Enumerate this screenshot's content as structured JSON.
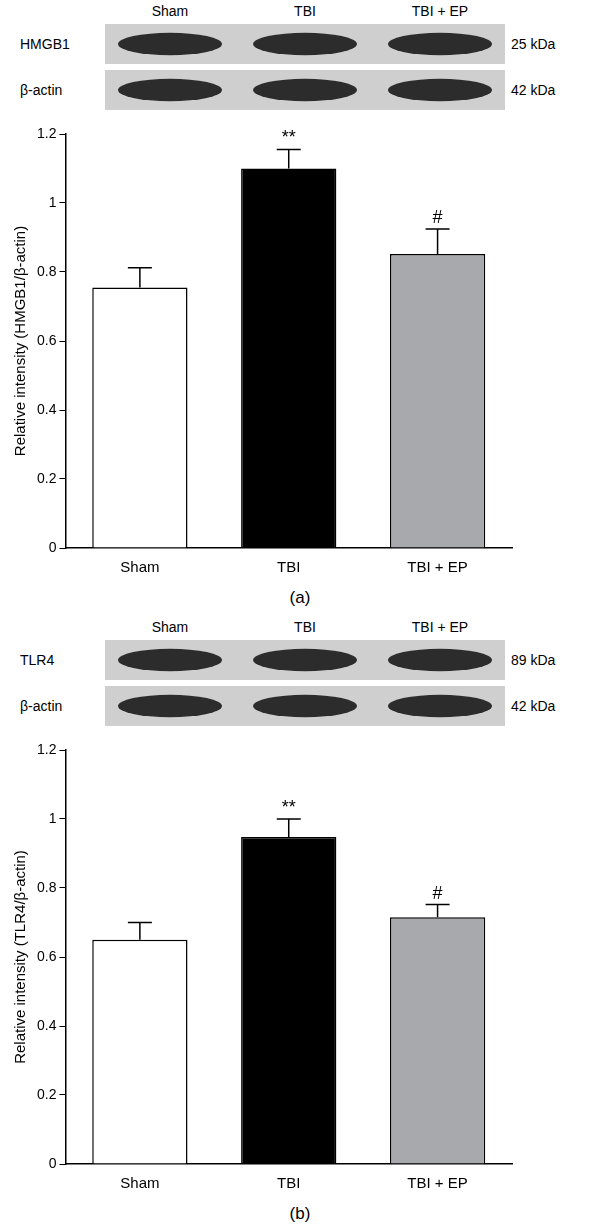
{
  "chart_data": [
    {
      "type": "bar",
      "panel": "(a)",
      "blot": {
        "lanes": [
          "Sham",
          "TBI",
          "TBI + EP"
        ],
        "rows": [
          {
            "label": "HMGB1",
            "size": "25 kDa"
          },
          {
            "label": "β-actin",
            "size": "42 kDa"
          }
        ]
      },
      "categories": [
        "Sham",
        "TBI",
        "TBI + EP"
      ],
      "values": [
        0.755,
        1.1,
        0.852
      ],
      "errors": [
        0.057,
        0.055,
        0.073
      ],
      "annotations": [
        null,
        "**",
        "#"
      ],
      "colors": [
        "#ffffff",
        "#000000",
        "#a7a9ac"
      ],
      "y_label": "Relative intensity (HMGB1/β-actin)",
      "ylim": [
        0,
        1.2
      ],
      "yticks": [
        0,
        0.2,
        0.4,
        0.6,
        0.8,
        1,
        1.2
      ],
      "grid": false
    },
    {
      "type": "bar",
      "panel": "(b)",
      "blot": {
        "lanes": [
          "Sham",
          "TBI",
          "TBI + EP"
        ],
        "rows": [
          {
            "label": "TLR4",
            "size": "89 kDa"
          },
          {
            "label": "β-actin",
            "size": "42 kDa"
          }
        ]
      },
      "categories": [
        "Sham",
        "TBI",
        "TBI + EP"
      ],
      "values": [
        0.65,
        0.948,
        0.715
      ],
      "errors": [
        0.05,
        0.052,
        0.037
      ],
      "annotations": [
        null,
        "**",
        "#"
      ],
      "colors": [
        "#ffffff",
        "#000000",
        "#a7a9ac"
      ],
      "y_label": "Relative intensity (TLR4/β-actin)",
      "ylim": [
        0,
        1.2
      ],
      "yticks": [
        0,
        0.2,
        0.4,
        0.6,
        0.8,
        1,
        1.2
      ],
      "grid": false
    }
  ]
}
